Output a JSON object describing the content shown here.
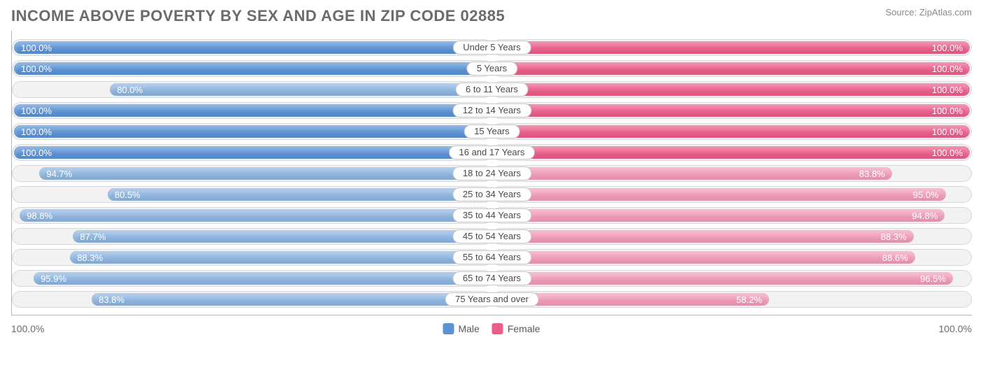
{
  "title": "INCOME ABOVE POVERTY BY SEX AND AGE IN ZIP CODE 02885",
  "source": "Source: ZipAtlas.com",
  "chart": {
    "type": "diverging-bar",
    "male_color": "#5b93d6",
    "male_color_light": "#8fb6e2",
    "female_color": "#ec5e8a",
    "female_color_light": "#f29bb9",
    "track_bg": "#f2f2f2",
    "track_border": "#d9d9d9",
    "bar_label_color": "#ffffff",
    "cat_label_bg": "#ffffff",
    "cat_label_border": "#c9c9c9",
    "cat_label_color": "#4a4a4a",
    "axis_color": "#b5b5b5",
    "categories": [
      {
        "label": "Under 5 Years",
        "male": 100.0,
        "female": 100.0
      },
      {
        "label": "5 Years",
        "male": 100.0,
        "female": 100.0
      },
      {
        "label": "6 to 11 Years",
        "male": 80.0,
        "female": 100.0
      },
      {
        "label": "12 to 14 Years",
        "male": 100.0,
        "female": 100.0
      },
      {
        "label": "15 Years",
        "male": 100.0,
        "female": 100.0
      },
      {
        "label": "16 and 17 Years",
        "male": 100.0,
        "female": 100.0
      },
      {
        "label": "18 to 24 Years",
        "male": 94.7,
        "female": 83.8
      },
      {
        "label": "25 to 34 Years",
        "male": 80.5,
        "female": 95.0
      },
      {
        "label": "35 to 44 Years",
        "male": 98.8,
        "female": 94.8
      },
      {
        "label": "45 to 54 Years",
        "male": 87.7,
        "female": 88.3
      },
      {
        "label": "55 to 64 Years",
        "male": 88.3,
        "female": 88.6
      },
      {
        "label": "65 to 74 Years",
        "male": 95.9,
        "female": 96.5
      },
      {
        "label": "75 Years and over",
        "male": 83.8,
        "female": 58.2
      }
    ],
    "axis_left_label": "100.0%",
    "axis_right_label": "100.0%",
    "legend": [
      {
        "label": "Male",
        "color": "#5b93d6"
      },
      {
        "label": "Female",
        "color": "#ec5e8a"
      }
    ]
  }
}
